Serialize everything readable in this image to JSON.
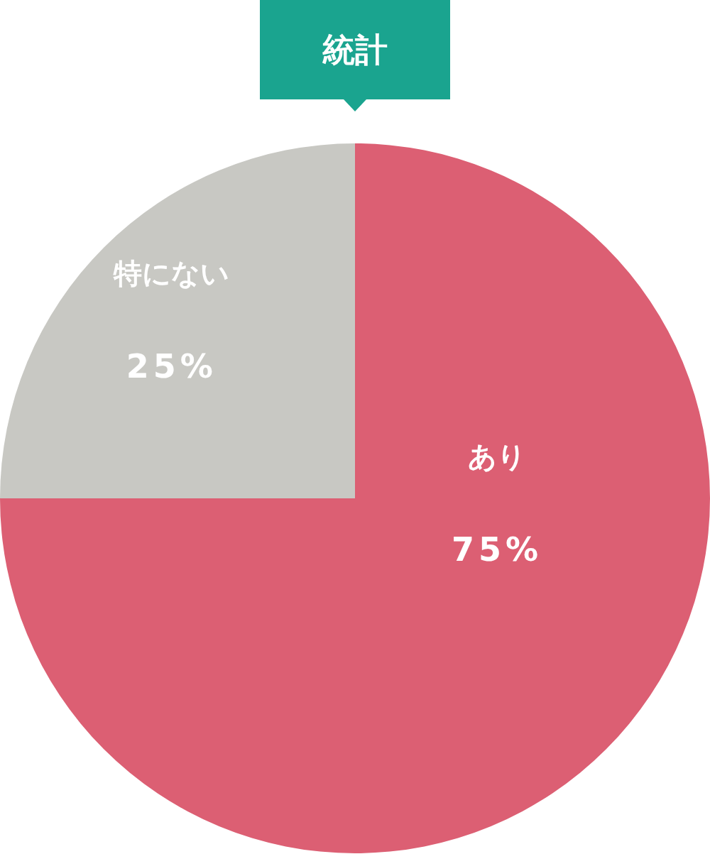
{
  "chart_data": {
    "type": "pie",
    "title": "統計",
    "categories": [
      "あり",
      "特にない"
    ],
    "values": [
      75,
      25
    ],
    "colors": [
      "#dc5f73",
      "#c8c8c3"
    ],
    "value_labels": [
      "75%",
      "25%"
    ]
  }
}
